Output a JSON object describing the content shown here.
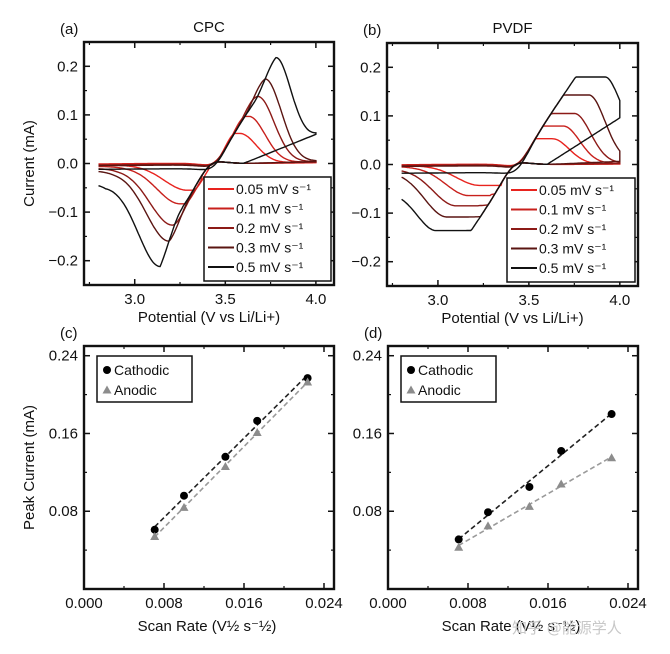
{
  "chart_data": [
    {
      "id": "a",
      "type": "line",
      "panel_tag": "(a)",
      "title": "CPC",
      "xlabel": "Potential (V vs Li/Li+)",
      "ylabel": "Current (mA)",
      "xlim": [
        2.72,
        4.1
      ],
      "ylim": [
        -0.25,
        0.25
      ],
      "xticks": [
        3.0,
        3.5,
        4.0
      ],
      "xtick_labels": [
        "3.0",
        "3.5",
        "4.0"
      ],
      "yticks": [
        -0.2,
        -0.1,
        0.0,
        0.1,
        0.2
      ],
      "ytick_labels": [
        "−0.2",
        "−0.1",
        "0.0",
        "0.1",
        "0.2"
      ],
      "legend_position": "bottom-right",
      "series": [
        {
          "name": "0.05 mV s⁻¹",
          "color": "#e8231e",
          "cathodic_peak": {
            "x": 3.29,
            "y": -0.055
          },
          "anodic_peak": {
            "x": 3.58,
            "y": 0.062
          },
          "start_current": -0.003,
          "end_current": 0.002
        },
        {
          "name": "0.1 mV s⁻¹",
          "color": "#c8201c",
          "cathodic_peak": {
            "x": 3.25,
            "y": -0.083
          },
          "anodic_peak": {
            "x": 3.63,
            "y": 0.097
          },
          "start_current": -0.006,
          "end_current": 0.003
        },
        {
          "name": "0.2 mV s⁻¹",
          "color": "#8c1a17",
          "cathodic_peak": {
            "x": 3.21,
            "y": -0.127
          },
          "anodic_peak": {
            "x": 3.68,
            "y": 0.138
          },
          "start_current": -0.01,
          "end_current": 0.004
        },
        {
          "name": "0.3 mV s⁻¹",
          "color": "#5a1512",
          "cathodic_peak": {
            "x": 3.19,
            "y": -0.16
          },
          "anodic_peak": {
            "x": 3.72,
            "y": 0.174
          },
          "start_current": -0.015,
          "end_current": 0.005
        },
        {
          "name": "0.5 mV s⁻¹",
          "color": "#111111",
          "cathodic_peak": {
            "x": 3.14,
            "y": -0.212
          },
          "anodic_peak": {
            "x": 3.78,
            "y": 0.218
          },
          "start_current": -0.04,
          "end_current": 0.075
        }
      ]
    },
    {
      "id": "b",
      "type": "line",
      "panel_tag": "(b)",
      "title": "PVDF",
      "xlabel": "Potential (V vs Li/Li+)",
      "ylabel": "",
      "xlim": [
        2.72,
        4.1
      ],
      "ylim": [
        -0.25,
        0.25
      ],
      "xticks": [
        3.0,
        3.5,
        4.0
      ],
      "xtick_labels": [
        "3.0",
        "3.5",
        "4.0"
      ],
      "yticks": [
        -0.2,
        -0.1,
        0.0,
        0.1,
        0.2
      ],
      "ytick_labels": [
        "−0.2",
        "−0.1",
        "0.0",
        "0.1",
        "0.2"
      ],
      "legend_position": "bottom-right",
      "series": [
        {
          "name": "0.05 mV s⁻¹",
          "color": "#e8231e",
          "cathodic_peak": {
            "x": 3.23,
            "y": -0.043
          },
          "anodic_peak": {
            "x": 3.63,
            "y": 0.053
          },
          "start_current": -0.002,
          "end_current": 0.001
        },
        {
          "name": "0.1 mV s⁻¹",
          "color": "#c8201c",
          "cathodic_peak": {
            "x": 3.17,
            "y": -0.064
          },
          "anodic_peak": {
            "x": 3.69,
            "y": 0.079
          },
          "start_current": -0.004,
          "end_current": 0.002
        },
        {
          "name": "0.2 mV s⁻¹",
          "color": "#8c1a17",
          "cathodic_peak": {
            "x": 3.1,
            "y": -0.085
          },
          "anodic_peak": {
            "x": 3.75,
            "y": 0.105
          },
          "start_current": -0.008,
          "end_current": 0.003
        },
        {
          "name": "0.3 mV s⁻¹",
          "color": "#5a1512",
          "cathodic_peak": {
            "x": 3.05,
            "y": -0.108
          },
          "anodic_peak": {
            "x": 3.83,
            "y": 0.143
          },
          "start_current": -0.013,
          "end_current": 0.008
        },
        {
          "name": "0.5 mV s⁻¹",
          "color": "#111111",
          "cathodic_peak": {
            "x": 2.99,
            "y": -0.136
          },
          "anodic_peak": {
            "x": 3.92,
            "y": 0.18
          },
          "start_current": -0.06,
          "end_current": 0.12
        }
      ]
    },
    {
      "id": "c",
      "type": "scatter",
      "panel_tag": "(c)",
      "title": "",
      "xlabel": "Scan Rate (V½ s⁻½)",
      "ylabel": "Peak Current (mA)",
      "xlim": [
        0.0,
        0.025
      ],
      "ylim": [
        0.0,
        0.25
      ],
      "xticks": [
        0.0,
        0.008,
        0.016,
        0.024
      ],
      "xtick_labels": [
        "0.000",
        "0.008",
        "0.016",
        "0.024"
      ],
      "yticks": [
        0.08,
        0.16,
        0.24
      ],
      "ytick_labels": [
        "0.08",
        "0.16",
        "0.24"
      ],
      "legend_position": "top-left",
      "x": [
        0.00707,
        0.01,
        0.01414,
        0.01732,
        0.02236
      ],
      "series": [
        {
          "name": "Cathodic",
          "marker": "circle",
          "color": "#000000",
          "line_color": "#222222",
          "values": [
            0.061,
            0.096,
            0.136,
            0.173,
            0.217
          ]
        },
        {
          "name": "Anodic",
          "marker": "triangle",
          "color": "#8c8c8c",
          "line_color": "#9a9a9a",
          "values": [
            0.054,
            0.084,
            0.126,
            0.161,
            0.213
          ]
        }
      ]
    },
    {
      "id": "d",
      "type": "scatter",
      "panel_tag": "(d)",
      "title": "",
      "xlabel": "Scan Rate (V½ s⁻½)",
      "ylabel": "",
      "xlim": [
        0.0,
        0.025
      ],
      "ylim": [
        0.0,
        0.25
      ],
      "xticks": [
        0.0,
        0.008,
        0.016,
        0.024
      ],
      "xtick_labels": [
        "0.000",
        "0.008",
        "0.016",
        "0.024"
      ],
      "yticks": [
        0.08,
        0.16,
        0.24
      ],
      "ytick_labels": [
        "0.08",
        "0.16",
        "0.24"
      ],
      "legend_position": "top-left",
      "x": [
        0.00707,
        0.01,
        0.01414,
        0.01732,
        0.02236
      ],
      "series": [
        {
          "name": "Cathodic",
          "marker": "circle",
          "color": "#000000",
          "line_color": "#222222",
          "values": [
            0.051,
            0.079,
            0.105,
            0.142,
            0.18
          ]
        },
        {
          "name": "Anodic",
          "marker": "triangle",
          "color": "#8c8c8c",
          "line_color": "#9a9a9a",
          "values": [
            0.043,
            0.065,
            0.085,
            0.108,
            0.135
          ]
        }
      ]
    }
  ],
  "watermark": "知乎 @能源学人"
}
